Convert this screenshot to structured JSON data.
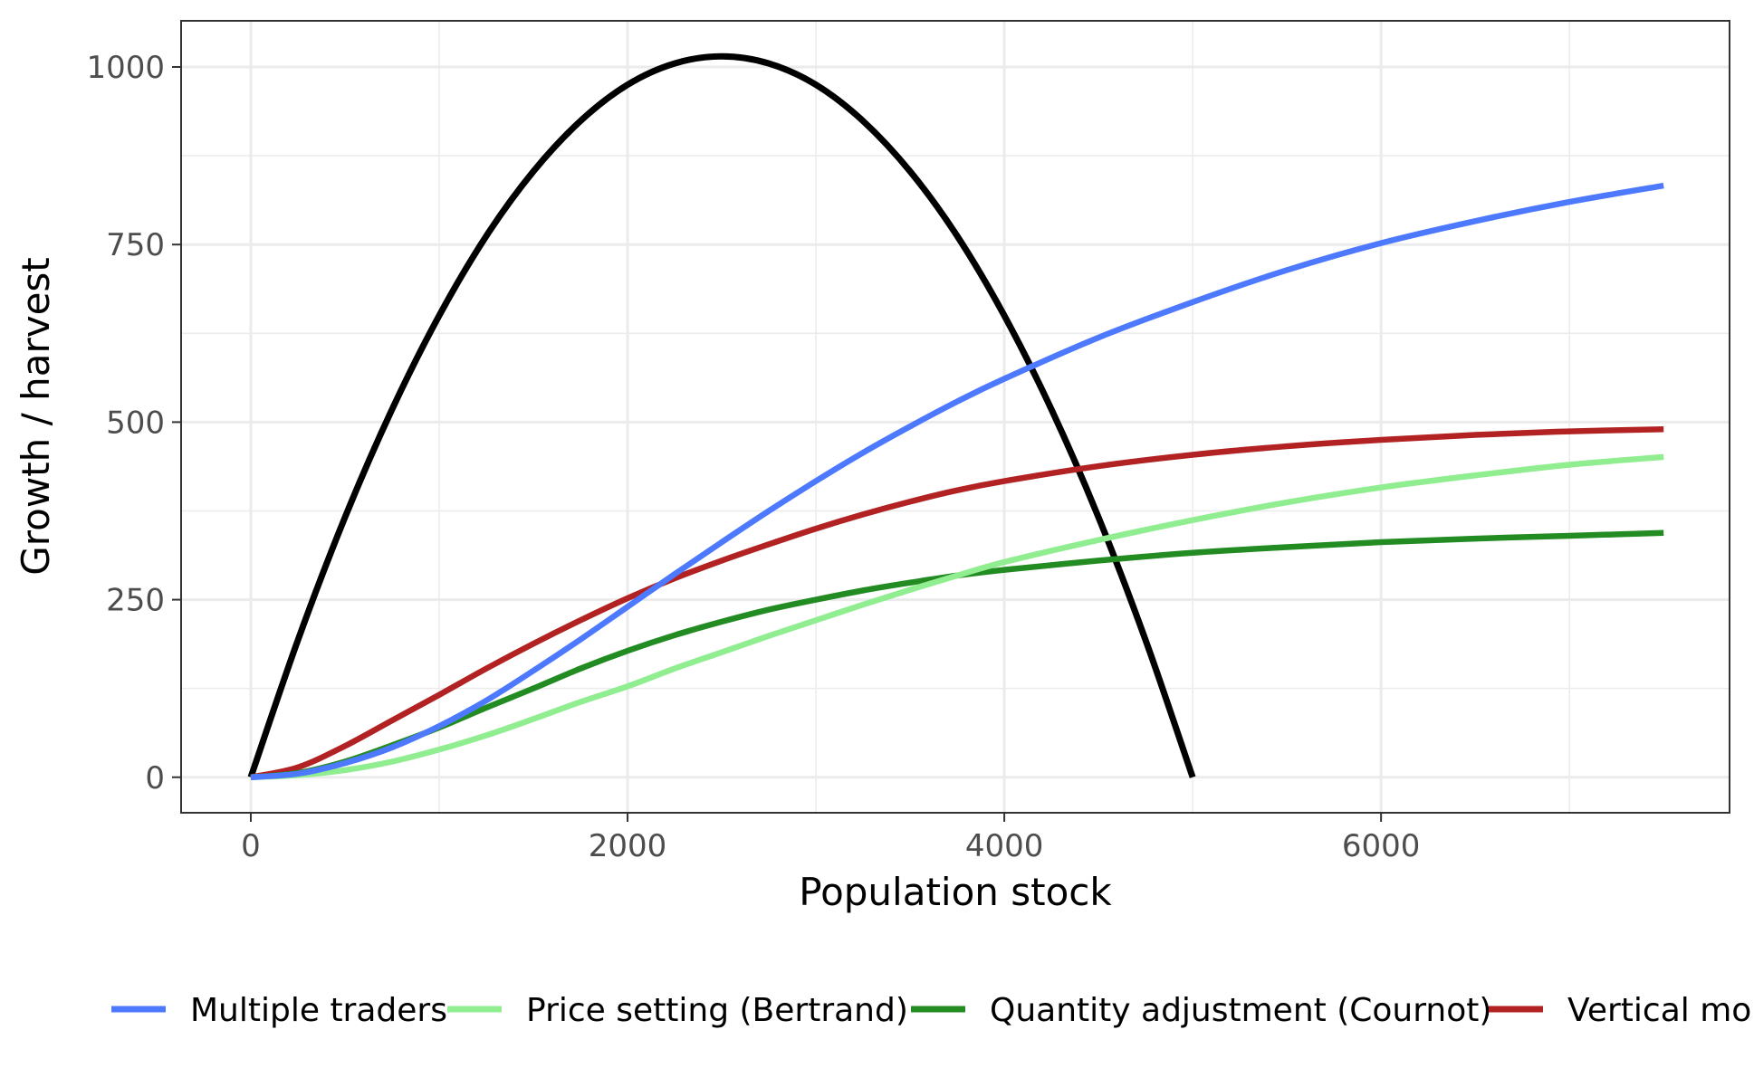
{
  "chart_data": {
    "type": "line",
    "title": "",
    "xlabel": "Population stock",
    "ylabel": "Growth / harvest",
    "xlim": [
      -370,
      7850
    ],
    "ylim": [
      -50,
      1065
    ],
    "x_ticks": [
      0,
      2000,
      4000,
      6000
    ],
    "y_ticks": [
      0,
      250,
      500,
      750,
      1000
    ],
    "x_tick_labels": [
      "0",
      "2000",
      "4000",
      "6000"
    ],
    "y_tick_labels": [
      "0",
      "250",
      "500",
      "750",
      "1000"
    ],
    "x_minor_grid": [
      1000,
      3000,
      5000,
      7000
    ],
    "y_minor_grid": [
      125,
      375,
      625,
      875
    ],
    "grid": true,
    "legend_position": "bottom",
    "growth_curve": {
      "color": "#000000",
      "x": [
        0,
        250,
        500,
        750,
        1000,
        1250,
        1500,
        1750,
        2000,
        2250,
        2500,
        2750,
        3000,
        3250,
        3500,
        3750,
        4000,
        4250,
        4500,
        4750,
        5000
      ],
      "y": [
        0,
        193,
        366,
        518,
        650,
        762,
        853,
        924,
        975,
        1005,
        1015,
        1005,
        975,
        924,
        853,
        762,
        650,
        518,
        366,
        193,
        0
      ]
    },
    "series": [
      {
        "name": "Multiple traders",
        "color": "#4D79FF",
        "x": [
          0,
          250,
          500,
          750,
          1000,
          1250,
          1500,
          1750,
          2000,
          2250,
          2500,
          2750,
          3000,
          3250,
          3500,
          3750,
          4000,
          4500,
          5000,
          5500,
          6000,
          6500,
          7000,
          7500
        ],
        "y": [
          0,
          5,
          20,
          42,
          72,
          108,
          150,
          194,
          240,
          286,
          331,
          375,
          417,
          457,
          494,
          529,
          561,
          619,
          669,
          714,
          752,
          783,
          810,
          833
        ]
      },
      {
        "name": "Price setting (Bertrand)",
        "color": "#90EE90",
        "x": [
          0,
          250,
          500,
          750,
          1000,
          1250,
          1500,
          1750,
          2000,
          2250,
          2500,
          2750,
          3000,
          3250,
          3500,
          3750,
          4000,
          4500,
          5000,
          5500,
          6000,
          6500,
          7000,
          7500
        ],
        "y": [
          0,
          3,
          10,
          22,
          39,
          59,
          82,
          106,
          128,
          153,
          176,
          199,
          221,
          243,
          264,
          284,
          303,
          334,
          362,
          387,
          408,
          425,
          440,
          451
        ]
      },
      {
        "name": "Quantity adjustment (Cournot)",
        "color": "#228B22",
        "x": [
          0,
          250,
          500,
          750,
          1000,
          1250,
          1500,
          1750,
          2000,
          2250,
          2500,
          2750,
          3000,
          3250,
          3500,
          3750,
          4000,
          4500,
          5000,
          5500,
          6000,
          6500,
          7000,
          7500
        ],
        "y": [
          0,
          6,
          22,
          45,
          70,
          98,
          125,
          153,
          178,
          200,
          219,
          236,
          250,
          263,
          274,
          284,
          292,
          305,
          316,
          324,
          331,
          336,
          340,
          344
        ]
      },
      {
        "name": "Vertical monopoly",
        "color": "#B22222",
        "x": [
          0,
          250,
          500,
          750,
          1000,
          1250,
          1500,
          1750,
          2000,
          2250,
          2500,
          2750,
          3000,
          3250,
          3500,
          3750,
          4000,
          4500,
          5000,
          5500,
          6000,
          6500,
          7000,
          7500
        ],
        "y": [
          0,
          14,
          44,
          80,
          116,
          153,
          188,
          221,
          252,
          280,
          305,
          328,
          350,
          370,
          388,
          404,
          417,
          438,
          454,
          466,
          475,
          482,
          487,
          490
        ]
      }
    ]
  }
}
